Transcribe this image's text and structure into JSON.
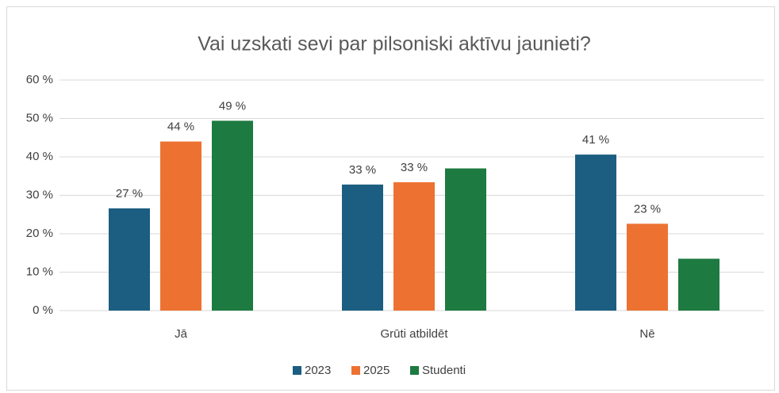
{
  "chart_data": {
    "type": "bar",
    "title": "Vai uzskati sevi par pilsoniski aktīvu jaunieti?",
    "categories": [
      "Jā",
      "Grūti atbildēt",
      "Nē"
    ],
    "series": [
      {
        "name": "2023",
        "color": "#1b5e81",
        "values": [
          26.6,
          32.8,
          40.6
        ],
        "value_labels": [
          "27 %",
          "33 %",
          "41 %"
        ]
      },
      {
        "name": "2025",
        "color": "#ed7232",
        "values": [
          44,
          33.4,
          22.6
        ],
        "value_labels": [
          "44 %",
          "33 %",
          "23 %"
        ]
      },
      {
        "name": "Studenti",
        "color": "#1d7a40",
        "values": [
          49.4,
          37,
          13.5
        ],
        "value_labels": [
          "49 %",
          null,
          null
        ]
      }
    ],
    "ylim": [
      0,
      60
    ],
    "yticks": [
      {
        "value": 0,
        "label": "0 %"
      },
      {
        "value": 10,
        "label": "10 %"
      },
      {
        "value": 20,
        "label": "20 %"
      },
      {
        "value": 30,
        "label": "30 %"
      },
      {
        "value": 40,
        "label": "40 %"
      },
      {
        "value": 50,
        "label": "50 %"
      },
      {
        "value": 60,
        "label": "60 %"
      }
    ],
    "grid": true,
    "legend": "bottom"
  }
}
